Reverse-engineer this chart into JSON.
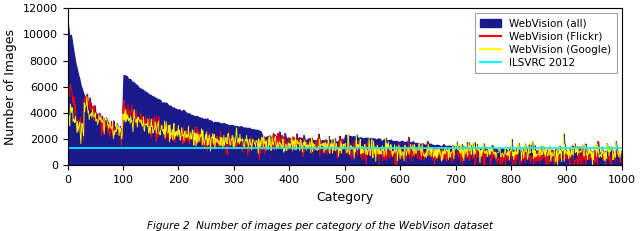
{
  "n_categories": 1000,
  "ylim": [
    0,
    12000
  ],
  "yticks": [
    0,
    2000,
    4000,
    6000,
    8000,
    10000,
    12000
  ],
  "xticks": [
    0,
    100,
    200,
    300,
    400,
    500,
    600,
    700,
    800,
    900,
    1000
  ],
  "xlabel": "Category",
  "ylabel": "Number of Images",
  "caption": "Figure 2  Number of images per category of the WebVison dataset",
  "legend_labels": [
    "WebVision (all)",
    "WebVision (Flickr)",
    "WebVision (Google)",
    "ILSVRC 2012"
  ],
  "color_all": "#1a1a8c",
  "color_flickr": "#ff0000",
  "color_google": "#ffff00",
  "color_ilsvrc": "#00ffff",
  "bg_color": "#ffffff",
  "seed": 42,
  "ilsvrc_level": 1300,
  "figsize": [
    6.4,
    2.31
  ],
  "dpi": 100
}
